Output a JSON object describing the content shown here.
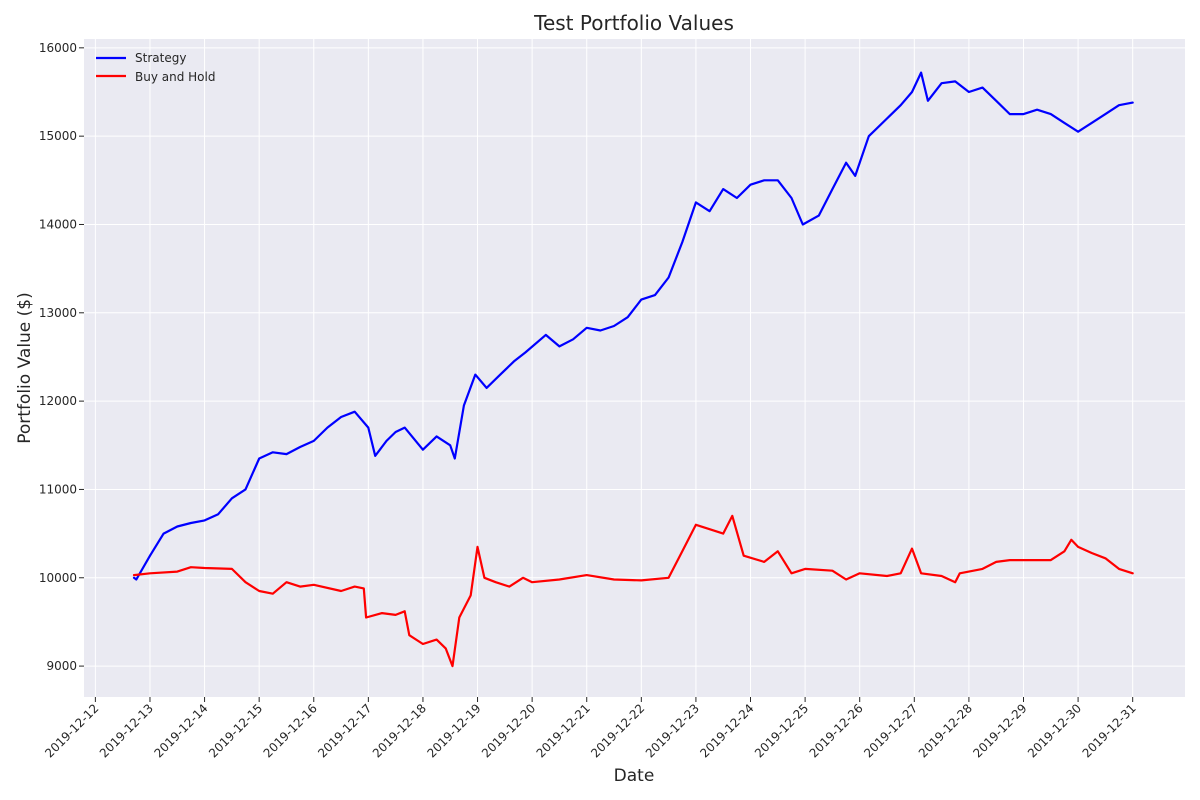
{
  "chart_data": {
    "type": "line",
    "title": "Test Portfolio Values",
    "xlabel": "Date",
    "ylabel": "Portfolio Value ($)",
    "xlim": [
      "2019-12-11T19:00",
      "2019-12-31T23:00"
    ],
    "ylim": [
      8650,
      16100
    ],
    "x_ticks": [
      "2019-12-12",
      "2019-12-13",
      "2019-12-14",
      "2019-12-15",
      "2019-12-16",
      "2019-12-17",
      "2019-12-18",
      "2019-12-19",
      "2019-12-20",
      "2019-12-21",
      "2019-12-22",
      "2019-12-23",
      "2019-12-24",
      "2019-12-25",
      "2019-12-26",
      "2019-12-27",
      "2019-12-28",
      "2019-12-29",
      "2019-12-30",
      "2019-12-31"
    ],
    "y_ticks": [
      9000,
      10000,
      11000,
      12000,
      13000,
      14000,
      15000,
      16000
    ],
    "grid": true,
    "legend_position": "top-left",
    "background": "#eaeaf2",
    "series": [
      {
        "name": "Strategy",
        "color": "#0000ff",
        "points": [
          [
            "2019-12-12T17:00",
            10000
          ],
          [
            "2019-12-12T18:00",
            9980
          ],
          [
            "2019-12-13T00:00",
            10250
          ],
          [
            "2019-12-13T06:00",
            10500
          ],
          [
            "2019-12-13T12:00",
            10580
          ],
          [
            "2019-12-13T18:00",
            10620
          ],
          [
            "2019-12-14T00:00",
            10650
          ],
          [
            "2019-12-14T06:00",
            10720
          ],
          [
            "2019-12-14T12:00",
            10900
          ],
          [
            "2019-12-14T18:00",
            11000
          ],
          [
            "2019-12-15T00:00",
            11350
          ],
          [
            "2019-12-15T06:00",
            11420
          ],
          [
            "2019-12-15T12:00",
            11400
          ],
          [
            "2019-12-15T18:00",
            11480
          ],
          [
            "2019-12-16T00:00",
            11550
          ],
          [
            "2019-12-16T06:00",
            11700
          ],
          [
            "2019-12-16T12:00",
            11820
          ],
          [
            "2019-12-16T18:00",
            11880
          ],
          [
            "2019-12-17T00:00",
            11700
          ],
          [
            "2019-12-17T03:00",
            11380
          ],
          [
            "2019-12-17T08:00",
            11550
          ],
          [
            "2019-12-17T12:00",
            11650
          ],
          [
            "2019-12-17T16:00",
            11700
          ],
          [
            "2019-12-18T00:00",
            11450
          ],
          [
            "2019-12-18T06:00",
            11600
          ],
          [
            "2019-12-18T12:00",
            11500
          ],
          [
            "2019-12-18T14:00",
            11350
          ],
          [
            "2019-12-18T18:00",
            11950
          ],
          [
            "2019-12-18T23:00",
            12300
          ],
          [
            "2019-12-19T04:00",
            12150
          ],
          [
            "2019-12-19T10:00",
            12300
          ],
          [
            "2019-12-19T16:00",
            12450
          ],
          [
            "2019-12-19T21:00",
            12550
          ],
          [
            "2019-12-20T06:00",
            12750
          ],
          [
            "2019-12-20T12:00",
            12620
          ],
          [
            "2019-12-20T18:00",
            12700
          ],
          [
            "2019-12-21T00:00",
            12830
          ],
          [
            "2019-12-21T06:00",
            12800
          ],
          [
            "2019-12-21T12:00",
            12850
          ],
          [
            "2019-12-21T18:00",
            12950
          ],
          [
            "2019-12-22T00:00",
            13150
          ],
          [
            "2019-12-22T06:00",
            13200
          ],
          [
            "2019-12-22T12:00",
            13400
          ],
          [
            "2019-12-22T18:00",
            13800
          ],
          [
            "2019-12-23T00:00",
            14250
          ],
          [
            "2019-12-23T06:00",
            14150
          ],
          [
            "2019-12-23T12:00",
            14400
          ],
          [
            "2019-12-23T18:00",
            14300
          ],
          [
            "2019-12-24T00:00",
            14450
          ],
          [
            "2019-12-24T06:00",
            14500
          ],
          [
            "2019-12-24T12:00",
            14500
          ],
          [
            "2019-12-24T18:00",
            14300
          ],
          [
            "2019-12-24T23:00",
            14000
          ],
          [
            "2019-12-25T06:00",
            14100
          ],
          [
            "2019-12-25T12:00",
            14400
          ],
          [
            "2019-12-25T18:00",
            14700
          ],
          [
            "2019-12-25T22:00",
            14550
          ],
          [
            "2019-12-26T04:00",
            15000
          ],
          [
            "2019-12-26T12:00",
            15200
          ],
          [
            "2019-12-26T18:00",
            15350
          ],
          [
            "2019-12-26T23:00",
            15500
          ],
          [
            "2019-12-27T03:00",
            15720
          ],
          [
            "2019-12-27T06:00",
            15400
          ],
          [
            "2019-12-27T12:00",
            15600
          ],
          [
            "2019-12-27T18:00",
            15620
          ],
          [
            "2019-12-28T00:00",
            15500
          ],
          [
            "2019-12-28T06:00",
            15550
          ],
          [
            "2019-12-28T12:00",
            15400
          ],
          [
            "2019-12-28T18:00",
            15250
          ],
          [
            "2019-12-29T00:00",
            15250
          ],
          [
            "2019-12-29T06:00",
            15300
          ],
          [
            "2019-12-29T12:00",
            15250
          ],
          [
            "2019-12-29T18:00",
            15150
          ],
          [
            "2019-12-30T00:00",
            15050
          ],
          [
            "2019-12-30T06:00",
            15150
          ],
          [
            "2019-12-30T12:00",
            15250
          ],
          [
            "2019-12-30T18:00",
            15350
          ],
          [
            "2019-12-31T00:00",
            15380
          ]
        ]
      },
      {
        "name": "Buy and Hold",
        "color": "#ff0000",
        "points": [
          [
            "2019-12-12T17:00",
            10030
          ],
          [
            "2019-12-13T00:00",
            10050
          ],
          [
            "2019-12-13T12:00",
            10070
          ],
          [
            "2019-12-13T18:00",
            10120
          ],
          [
            "2019-12-14T00:00",
            10110
          ],
          [
            "2019-12-14T12:00",
            10100
          ],
          [
            "2019-12-14T18:00",
            9950
          ],
          [
            "2019-12-15T00:00",
            9850
          ],
          [
            "2019-12-15T06:00",
            9820
          ],
          [
            "2019-12-15T12:00",
            9950
          ],
          [
            "2019-12-15T18:00",
            9900
          ],
          [
            "2019-12-16T00:00",
            9920
          ],
          [
            "2019-12-16T12:00",
            9850
          ],
          [
            "2019-12-16T18:00",
            9900
          ],
          [
            "2019-12-16T22:00",
            9880
          ],
          [
            "2019-12-16T23:00",
            9550
          ],
          [
            "2019-12-17T06:00",
            9600
          ],
          [
            "2019-12-17T12:00",
            9580
          ],
          [
            "2019-12-17T16:00",
            9620
          ],
          [
            "2019-12-17T18:00",
            9350
          ],
          [
            "2019-12-18T00:00",
            9250
          ],
          [
            "2019-12-18T06:00",
            9300
          ],
          [
            "2019-12-18T10:00",
            9200
          ],
          [
            "2019-12-18T13:00",
            9000
          ],
          [
            "2019-12-18T16:00",
            9550
          ],
          [
            "2019-12-18T21:00",
            9800
          ],
          [
            "2019-12-19T00:00",
            10350
          ],
          [
            "2019-12-19T03:00",
            10000
          ],
          [
            "2019-12-19T08:00",
            9950
          ],
          [
            "2019-12-19T14:00",
            9900
          ],
          [
            "2019-12-19T20:00",
            10000
          ],
          [
            "2019-12-20T00:00",
            9950
          ],
          [
            "2019-12-20T12:00",
            9980
          ],
          [
            "2019-12-21T00:00",
            10030
          ],
          [
            "2019-12-21T12:00",
            9980
          ],
          [
            "2019-12-22T00:00",
            9970
          ],
          [
            "2019-12-22T12:00",
            10000
          ],
          [
            "2019-12-22T18:00",
            10300
          ],
          [
            "2019-12-23T00:00",
            10600
          ],
          [
            "2019-12-23T06:00",
            10550
          ],
          [
            "2019-12-23T12:00",
            10500
          ],
          [
            "2019-12-23T16:00",
            10700
          ],
          [
            "2019-12-23T21:00",
            10250
          ],
          [
            "2019-12-24T06:00",
            10180
          ],
          [
            "2019-12-24T12:00",
            10300
          ],
          [
            "2019-12-24T18:00",
            10050
          ],
          [
            "2019-12-25T00:00",
            10100
          ],
          [
            "2019-12-25T12:00",
            10080
          ],
          [
            "2019-12-25T18:00",
            9980
          ],
          [
            "2019-12-26T00:00",
            10050
          ],
          [
            "2019-12-26T12:00",
            10020
          ],
          [
            "2019-12-26T18:00",
            10050
          ],
          [
            "2019-12-26T23:00",
            10330
          ],
          [
            "2019-12-27T03:00",
            10050
          ],
          [
            "2019-12-27T12:00",
            10020
          ],
          [
            "2019-12-27T18:00",
            9950
          ],
          [
            "2019-12-27T20:00",
            10050
          ],
          [
            "2019-12-28T06:00",
            10100
          ],
          [
            "2019-12-28T12:00",
            10180
          ],
          [
            "2019-12-28T18:00",
            10200
          ],
          [
            "2019-12-29T06:00",
            10200
          ],
          [
            "2019-12-29T12:00",
            10200
          ],
          [
            "2019-12-29T18:00",
            10300
          ],
          [
            "2019-12-29T21:00",
            10430
          ],
          [
            "2019-12-30T00:00",
            10350
          ],
          [
            "2019-12-30T06:00",
            10280
          ],
          [
            "2019-12-30T12:00",
            10220
          ],
          [
            "2019-12-30T18:00",
            10100
          ],
          [
            "2019-12-31T00:00",
            10050
          ]
        ]
      }
    ]
  }
}
